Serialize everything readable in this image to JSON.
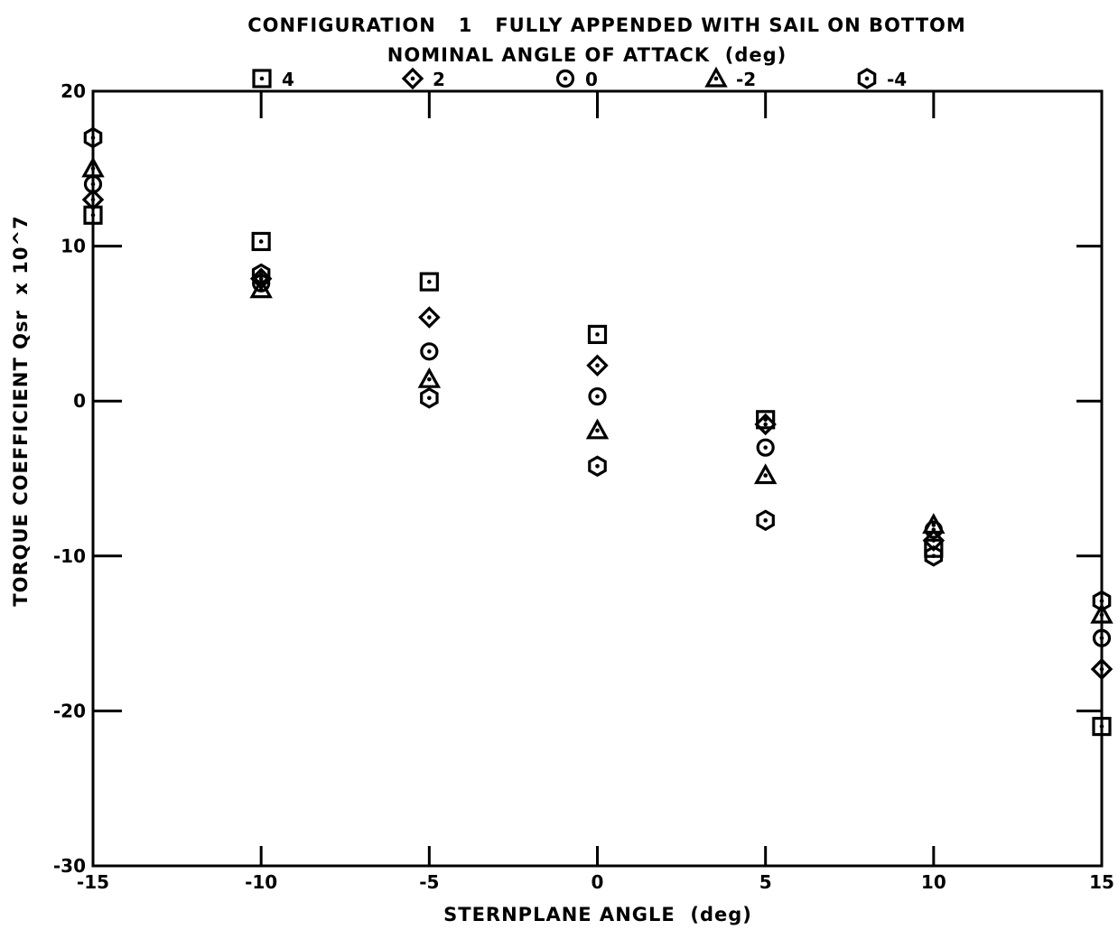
{
  "chart_data": {
    "type": "scatter",
    "title": "CONFIGURATION   1   FULLY APPENDED WITH SAIL ON BOTTOM",
    "legend_title": "NOMINAL ANGLE OF ATTACK  (deg)",
    "xlabel": "STERNPLANE ANGLE  (deg)",
    "ylabel": "TORQUE COEFFICIENT Qsr  x 10^7",
    "xlim": [
      -15,
      15
    ],
    "ylim": [
      -30,
      20
    ],
    "x_ticks": [
      -15,
      -10,
      -5,
      0,
      5,
      10,
      15
    ],
    "x_tick_labels": [
      "-15",
      "-10",
      "-5",
      "0",
      "5",
      "10",
      "15"
    ],
    "y_ticks": [
      -30,
      -20,
      -10,
      0,
      10,
      20
    ],
    "y_tick_labels": [
      "-30",
      "-20",
      "-10",
      "0",
      "10",
      "20"
    ],
    "legend_placement": "top, above plot",
    "grid": false,
    "series": [
      {
        "name": "4",
        "marker": "square",
        "x": [
          -15,
          -10,
          -5,
          0,
          5,
          10,
          15
        ],
        "y": [
          12.0,
          10.3,
          7.7,
          4.3,
          -1.2,
          -9.5,
          -21.0
        ]
      },
      {
        "name": "2",
        "marker": "diamond",
        "x": [
          -15,
          -10,
          -5,
          0,
          5,
          10,
          15
        ],
        "y": [
          13.0,
          7.9,
          5.4,
          2.3,
          -1.5,
          -9.0,
          -17.3
        ]
      },
      {
        "name": "0",
        "marker": "circle",
        "x": [
          -15,
          -10,
          -5,
          0,
          5,
          10,
          15
        ],
        "y": [
          14.0,
          7.6,
          3.2,
          0.3,
          -3.0,
          -8.3,
          -15.3
        ]
      },
      {
        "name": "-2",
        "marker": "triangle",
        "x": [
          -15,
          -10,
          -5,
          0,
          5,
          10,
          15
        ],
        "y": [
          15.0,
          7.2,
          1.4,
          -1.9,
          -4.8,
          -8.0,
          -13.8
        ]
      },
      {
        "name": "-4",
        "marker": "hexagon",
        "x": [
          -15,
          -10,
          -5,
          0,
          5,
          10,
          15
        ],
        "y": [
          17.0,
          8.2,
          0.2,
          -4.2,
          -7.7,
          -10.0,
          -12.9
        ]
      }
    ]
  }
}
